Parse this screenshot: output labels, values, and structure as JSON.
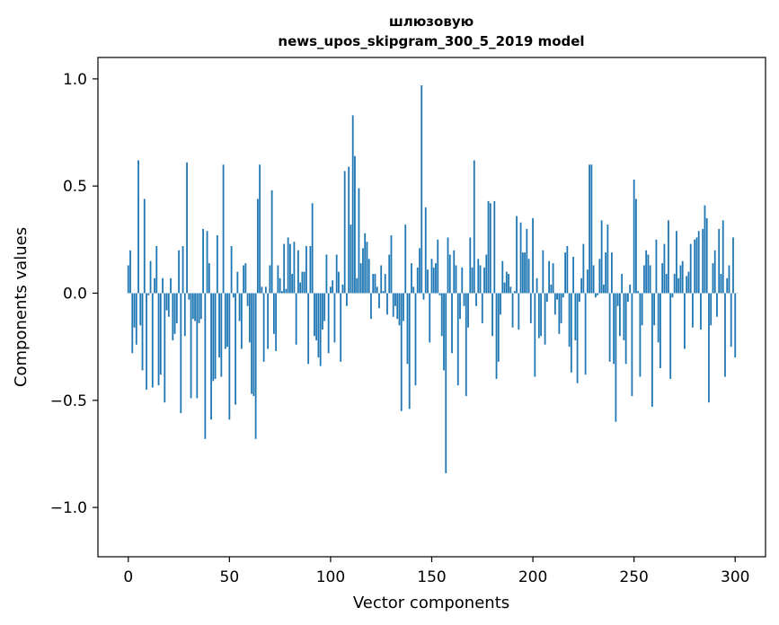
{
  "chart_data": {
    "type": "bar",
    "title": "шлюзовую",
    "subtitle": "news_upos_skipgram_300_5_2019 model",
    "xlabel": "Vector components",
    "ylabel": "Components values",
    "xlim": [
      -15,
      315
    ],
    "ylim": [
      -1.23,
      1.1
    ],
    "xticks": [
      0,
      50,
      100,
      150,
      200,
      250,
      300
    ],
    "yticks": [
      1.0,
      0.5,
      0.0,
      -0.5,
      -1.0
    ],
    "xtick_labels": [
      "0",
      "50",
      "100",
      "150",
      "200",
      "250",
      "300"
    ],
    "ytick_labels": [
      "1.0",
      "0.5",
      "0.0",
      "−0.5",
      "−1.0"
    ],
    "color": "#1f77b4",
    "grid": false,
    "legend": "none",
    "values": [
      0.13,
      0.2,
      -0.28,
      -0.16,
      -0.24,
      0.62,
      -0.15,
      -0.36,
      0.44,
      -0.45,
      -0.01,
      0.15,
      -0.44,
      0.07,
      0.22,
      -0.43,
      -0.38,
      0.07,
      -0.51,
      -0.08,
      -0.11,
      0.07,
      -0.22,
      -0.19,
      -0.14,
      0.2,
      -0.56,
      0.22,
      -0.2,
      0.61,
      -0.03,
      -0.49,
      -0.12,
      -0.13,
      -0.49,
      -0.14,
      -0.12,
      0.3,
      -0.68,
      0.29,
      0.14,
      -0.59,
      -0.41,
      -0.4,
      0.27,
      -0.3,
      -0.39,
      0.6,
      -0.26,
      -0.25,
      -0.59,
      0.22,
      -0.02,
      -0.52,
      0.1,
      -0.13,
      -0.26,
      0.13,
      0.14,
      -0.06,
      -0.23,
      -0.47,
      -0.48,
      -0.68,
      0.44,
      0.6,
      0.03,
      -0.32,
      0.03,
      -0.26,
      0.13,
      0.48,
      -0.19,
      -0.27,
      0.13,
      0.07,
      0.01,
      0.23,
      0.02,
      0.26,
      0.23,
      0.09,
      0.24,
      -0.24,
      0.2,
      0.05,
      0.1,
      0.1,
      0.22,
      -0.33,
      0.22,
      0.42,
      -0.2,
      -0.22,
      -0.3,
      -0.34,
      -0.17,
      -0.13,
      0.18,
      -0.28,
      0.03,
      0.06,
      -0.23,
      0.18,
      0.1,
      -0.32,
      0.04,
      0.57,
      -0.06,
      0.59,
      0.32,
      0.83,
      0.64,
      0.07,
      0.49,
      0.14,
      0.21,
      0.28,
      0.24,
      0.16,
      -0.12,
      0.09,
      0.09,
      0.03,
      -0.07,
      0.13,
      0.01,
      0.09,
      -0.1,
      0.18,
      0.27,
      -0.11,
      -0.06,
      -0.12,
      -0.15,
      -0.55,
      -0.13,
      0.32,
      -0.33,
      -0.54,
      0.14,
      0.03,
      -0.43,
      0.12,
      0.21,
      0.97,
      -0.03,
      0.4,
      0.11,
      -0.23,
      0.16,
      0.12,
      0.14,
      0.25,
      -0.01,
      -0.2,
      -0.36,
      -0.84,
      0.26,
      0.18,
      -0.28,
      0.2,
      0.13,
      -0.43,
      -0.12,
      0.12,
      -0.06,
      -0.48,
      -0.16,
      0.26,
      0.12,
      0.62,
      -0.06,
      0.16,
      0.13,
      -0.14,
      0.12,
      0.18,
      0.43,
      0.42,
      -0.2,
      0.43,
      -0.4,
      -0.32,
      -0.1,
      0.15,
      0.05,
      0.1,
      0.09,
      0.03,
      -0.16,
      0.01,
      0.36,
      -0.17,
      0.33,
      0.19,
      0.19,
      0.3,
      0.16,
      -0.14,
      0.35,
      -0.39,
      0.07,
      -0.21,
      -0.2,
      0.2,
      -0.24,
      -0.04,
      0.15,
      0.04,
      0.14,
      -0.1,
      -0.03,
      -0.19,
      -0.14,
      -0.02,
      0.19,
      0.22,
      -0.25,
      -0.37,
      0.17,
      -0.22,
      -0.42,
      -0.04,
      0.07,
      0.23,
      -0.38,
      0.11,
      0.6,
      0.6,
      0.13,
      -0.02,
      -0.01,
      0.16,
      0.34,
      0.04,
      0.19,
      0.32,
      -0.32,
      0.19,
      -0.33,
      -0.6,
      -0.06,
      -0.2,
      0.09,
      -0.22,
      -0.33,
      -0.04,
      0.04,
      -0.48,
      0.53,
      0.44,
      0.01,
      -0.39,
      -0.15,
      0.13,
      0.2,
      0.18,
      0.13,
      -0.53,
      -0.15,
      0.25,
      -0.23,
      -0.35,
      0.14,
      0.23,
      0.09,
      0.34,
      -0.4,
      -0.02,
      0.09,
      0.29,
      0.07,
      0.13,
      0.15,
      -0.26,
      0.08,
      0.1,
      0.23,
      -0.16,
      0.25,
      0.26,
      0.29,
      -0.17,
      0.3,
      0.41,
      0.35,
      -0.51,
      -0.15,
      0.14,
      0.2,
      -0.11,
      0.3,
      0.09,
      0.34,
      -0.39,
      0.07,
      0.13,
      -0.25,
      0.26,
      -0.3,
      0.0
    ]
  }
}
